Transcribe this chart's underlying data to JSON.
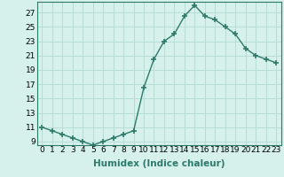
{
  "x": [
    0,
    1,
    2,
    3,
    4,
    5,
    6,
    7,
    8,
    9,
    10,
    11,
    12,
    13,
    14,
    15,
    16,
    17,
    18,
    19,
    20,
    21,
    22,
    23
  ],
  "y": [
    11,
    10.5,
    10,
    9.5,
    9,
    8.5,
    9,
    9.5,
    10,
    10.5,
    16.5,
    20.5,
    23.0,
    24.0,
    26.5,
    28.0,
    26.5,
    26.0,
    25.0,
    24.0,
    22.0,
    21.0,
    20.5,
    20.0
  ],
  "line_color": "#2d7a6a",
  "marker": "+",
  "marker_size": 4,
  "marker_lw": 1.2,
  "bg_color": "#d6f0ec",
  "grid_color": "#b8ddd8",
  "xlabel": "Humidex (Indice chaleur)",
  "ylim": [
    8.5,
    28.5
  ],
  "xlim": [
    -0.5,
    23.5
  ],
  "yticks": [
    9,
    11,
    13,
    15,
    17,
    19,
    21,
    23,
    25,
    27
  ],
  "xtick_labels": [
    "0",
    "1",
    "2",
    "3",
    "4",
    "5",
    "6",
    "7",
    "8",
    "9",
    "10",
    "11",
    "12",
    "13",
    "14",
    "15",
    "16",
    "17",
    "18",
    "19",
    "20",
    "21",
    "22",
    "23"
  ],
  "xlabel_fontsize": 7.5,
  "tick_fontsize": 6.5,
  "line_width": 1.0
}
